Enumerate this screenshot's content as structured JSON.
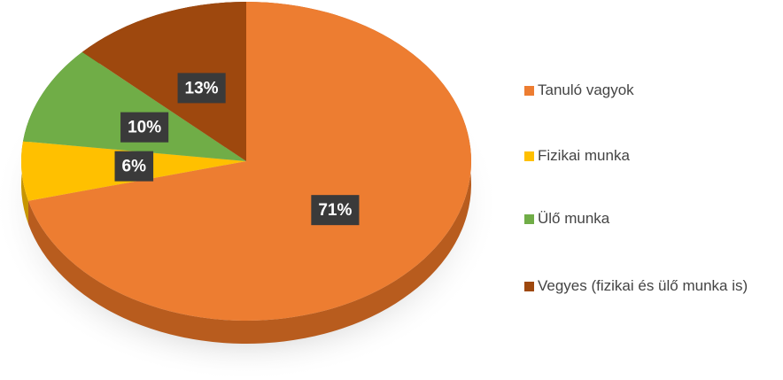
{
  "chart_data": {
    "type": "pie",
    "categories": [
      "Tanuló vagyok",
      "Fizikai munka",
      "Ülő munka",
      "Vegyes (fizikai és ülő munka is)"
    ],
    "values": [
      71,
      6,
      10,
      13
    ],
    "value_labels": [
      "71%",
      "6%",
      "10%",
      "13%"
    ],
    "colors": [
      "#ED7D31",
      "#FFC000",
      "#70AD47",
      "#9E480E"
    ],
    "side_colors": [
      "#B85C1E",
      "#C79500",
      "#4F7F30",
      "#6E310A"
    ],
    "legend": "right"
  }
}
